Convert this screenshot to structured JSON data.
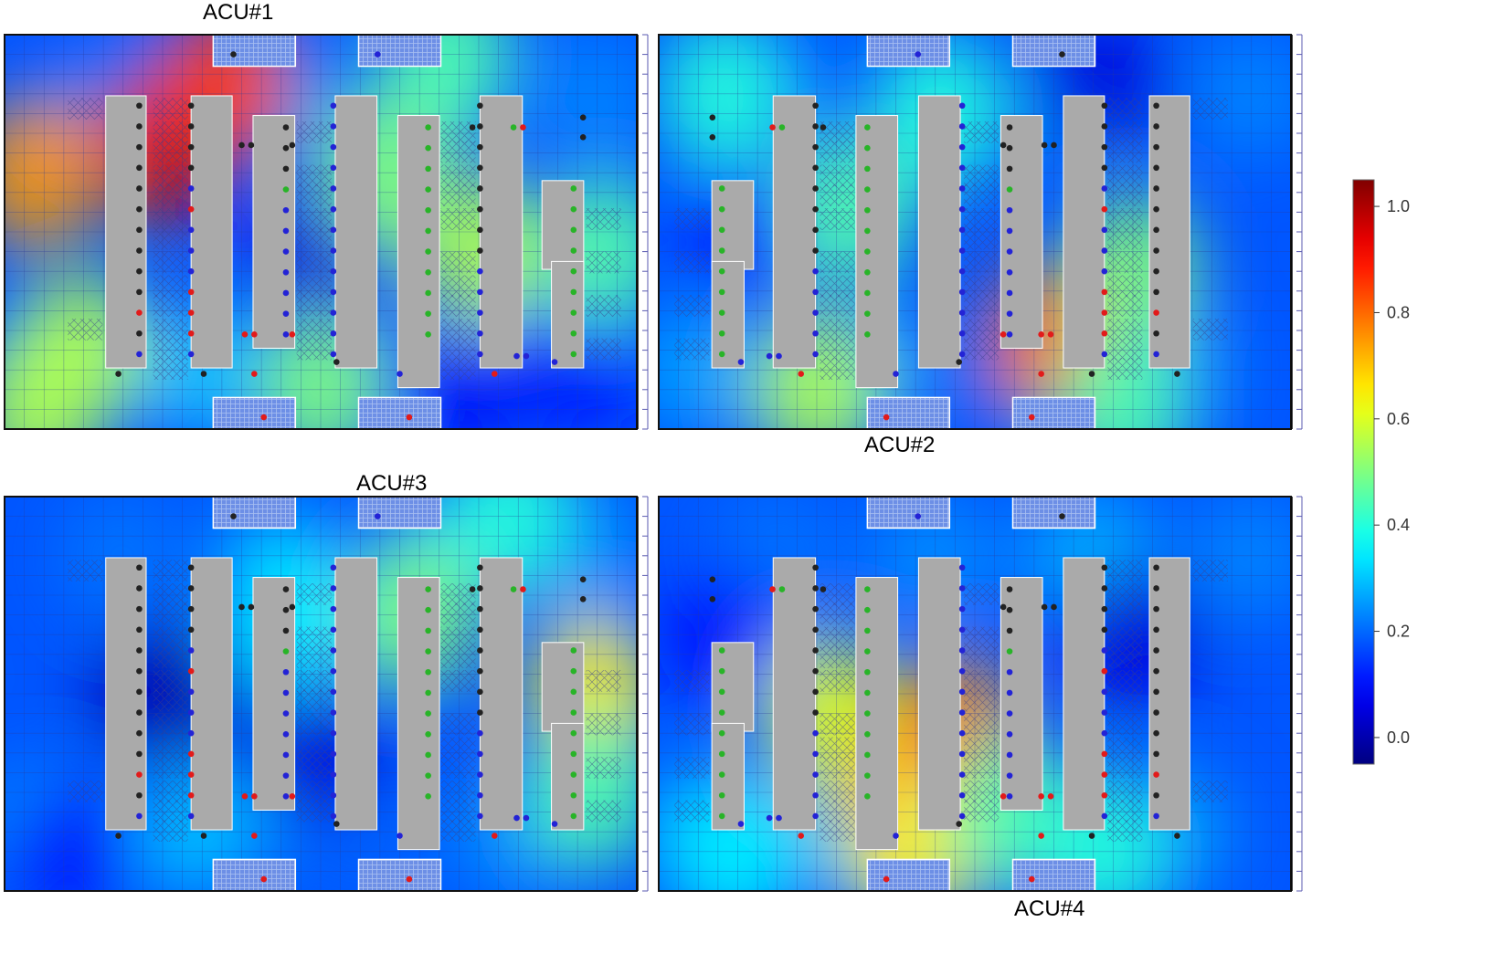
{
  "chart_data": {
    "type": "heatmap",
    "panels": [
      {
        "title": "ACU#1",
        "hotspots": [
          {
            "cx": 0.05,
            "cy": 0.35,
            "value": 0.75
          },
          {
            "cx": 0.25,
            "cy": 0.28,
            "value": 0.95
          },
          {
            "cx": 0.35,
            "cy": 0.12,
            "value": 0.85
          },
          {
            "cx": 0.12,
            "cy": 0.8,
            "value": 0.55
          },
          {
            "cx": 0.05,
            "cy": 0.95,
            "value": 0.55
          },
          {
            "cx": 0.7,
            "cy": 0.05,
            "value": 0.45
          },
          {
            "cx": 0.95,
            "cy": 0.55,
            "value": 0.45
          },
          {
            "cx": 0.75,
            "cy": 0.55,
            "value": 0.55
          },
          {
            "cx": 0.5,
            "cy": 0.9,
            "value": 0.5
          },
          {
            "cx": 0.6,
            "cy": 0.35,
            "value": 0.5
          }
        ],
        "coldspots": [
          {
            "cx": 0.5,
            "cy": 0.55,
            "value": 0.05
          },
          {
            "cx": 0.9,
            "cy": 0.85,
            "value": 0.1
          },
          {
            "cx": 0.72,
            "cy": 0.9,
            "value": 0.08
          }
        ]
      },
      {
        "title": "ACU#2",
        "hotspots": [
          {
            "cx": 0.38,
            "cy": 0.78,
            "value": 0.8
          },
          {
            "cx": 0.25,
            "cy": 0.6,
            "value": 0.5
          },
          {
            "cx": 0.27,
            "cy": 0.95,
            "value": 0.45
          },
          {
            "cx": 0.7,
            "cy": 0.45,
            "value": 0.45
          },
          {
            "cx": 0.75,
            "cy": 0.9,
            "value": 0.55
          },
          {
            "cx": 0.9,
            "cy": 0.15,
            "value": 0.4
          },
          {
            "cx": 0.55,
            "cy": 0.2,
            "value": 0.4
          }
        ],
        "coldspots": [
          {
            "cx": 0.3,
            "cy": 0.12,
            "value": 0.05
          },
          {
            "cx": 0.85,
            "cy": 0.5,
            "value": 0.1
          }
        ]
      },
      {
        "title": "ACU#3",
        "hotspots": [
          {
            "cx": 0.65,
            "cy": 0.3,
            "value": 0.5
          },
          {
            "cx": 0.93,
            "cy": 0.5,
            "value": 0.65
          },
          {
            "cx": 0.93,
            "cy": 0.75,
            "value": 0.45
          },
          {
            "cx": 0.8,
            "cy": 0.05,
            "value": 0.4
          },
          {
            "cx": 0.45,
            "cy": 0.3,
            "value": 0.35
          }
        ],
        "coldspots": [
          {
            "cx": 0.25,
            "cy": 0.5,
            "value": 0.0
          },
          {
            "cx": 0.5,
            "cy": 0.65,
            "value": 0.05
          },
          {
            "cx": 0.1,
            "cy": 0.9,
            "value": 0.1
          }
        ]
      },
      {
        "title": "ACU#4",
        "hotspots": [
          {
            "cx": 0.53,
            "cy": 0.6,
            "value": 0.75
          },
          {
            "cx": 0.63,
            "cy": 0.72,
            "value": 0.85
          },
          {
            "cx": 0.73,
            "cy": 0.55,
            "value": 0.6
          },
          {
            "cx": 0.6,
            "cy": 0.9,
            "value": 0.65
          },
          {
            "cx": 0.45,
            "cy": 0.8,
            "value": 0.45
          },
          {
            "cx": 0.3,
            "cy": 0.9,
            "value": 0.4
          },
          {
            "cx": 0.88,
            "cy": 0.9,
            "value": 0.35
          }
        ],
        "coldspots": [
          {
            "cx": 0.25,
            "cy": 0.35,
            "value": 0.05
          },
          {
            "cx": 0.9,
            "cy": 0.35,
            "value": 0.1
          }
        ]
      }
    ],
    "colorbar": {
      "ticks": [
        "1.0",
        "0.8",
        "0.6",
        "0.4",
        "0.2",
        "0.0"
      ],
      "range": [
        -0.05,
        1.05
      ],
      "colormap": "jet"
    },
    "marker_colors": {
      "black": "#222222",
      "red": "#e21a1a",
      "blue": "#2323d6",
      "green": "#28b428"
    }
  }
}
